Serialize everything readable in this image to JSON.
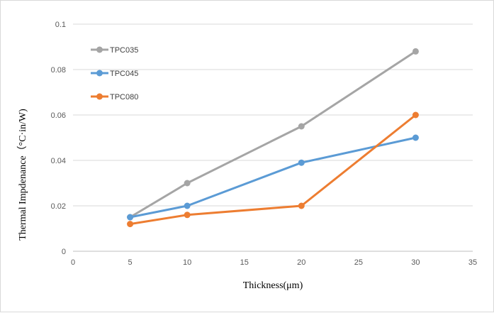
{
  "chart_data": {
    "type": "line",
    "title": "",
    "xlabel": "Thickness(μm)",
    "ylabel": "Thermal Impdenance（°C·in/W)",
    "xlim": [
      0,
      35
    ],
    "ylim": [
      0,
      0.1
    ],
    "xticks": [
      "0",
      "5",
      "10",
      "15",
      "20",
      "25",
      "30",
      "35"
    ],
    "yticks": [
      "0",
      "0.02",
      "0.04",
      "0.06",
      "0.08",
      "0.1"
    ],
    "grid": "horizontal",
    "legend_position": "top-left",
    "x": [
      5,
      10,
      20,
      30
    ],
    "series": [
      {
        "name": "TPC035",
        "color": "#a5a5a5",
        "values": [
          0.015,
          0.03,
          0.055,
          0.088
        ]
      },
      {
        "name": "TPC045",
        "color": "#5b9bd5",
        "values": [
          0.015,
          0.02,
          0.039,
          0.05
        ]
      },
      {
        "name": "TPC080",
        "color": "#ed7d31",
        "values": [
          0.012,
          0.016,
          0.02,
          0.06
        ]
      }
    ]
  }
}
